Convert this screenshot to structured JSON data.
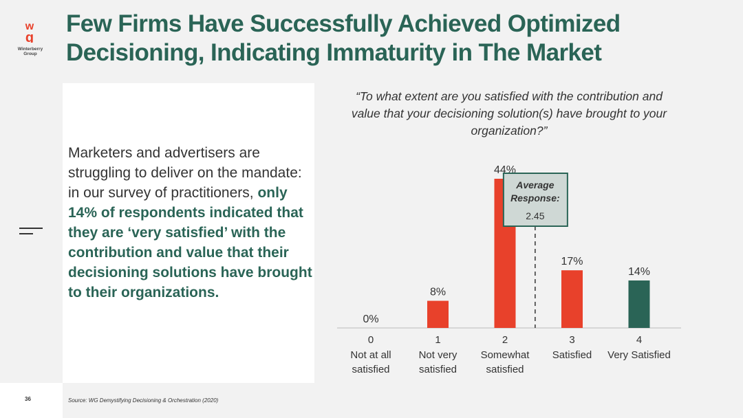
{
  "logo": {
    "brand_line1": "Winterberry",
    "brand_line2": "Group"
  },
  "title": {
    "line1": "Few Firms Have Successfully Achieved Optimized",
    "line2": "Decisioning, Indicating Immaturity in The Market"
  },
  "body": {
    "plain": "Marketers and advertisers are struggling to deliver on the mandate: in our survey of practitioners, ",
    "highlight": "only 14% of respondents indicated that they are ‘very satisfied’ with the contribution and value that their decisioning solutions have brought to their organizations."
  },
  "question": "“To what extent are you satisfied with the contribution and value that your decisioning solution(s) have brought to your organization?”",
  "colors": {
    "red": "#e8412b",
    "green": "#2a6456",
    "avg_box": "#cfd8d5"
  },
  "chart_data": {
    "type": "bar",
    "categories": [
      "0",
      "1",
      "2",
      "3",
      "4"
    ],
    "category_labels": [
      [
        "Not at all",
        "satisfied"
      ],
      [
        "Not very",
        "satisfied"
      ],
      [
        "Somewhat",
        "satisfied"
      ],
      [
        "Satisfied"
      ],
      [
        "Very Satisfied"
      ]
    ],
    "values": [
      0,
      8,
      44,
      17,
      14
    ],
    "value_labels": [
      "0%",
      "8%",
      "44%",
      "17%",
      "14%"
    ],
    "highlight_index": 4,
    "ylim": [
      0,
      44
    ],
    "average": {
      "label_line1": "Average",
      "label_line2": "Response:",
      "value": 2.45,
      "value_text": "2.45"
    },
    "title": "",
    "xlabel": "",
    "ylabel": ""
  },
  "footer": {
    "page": "36",
    "source": "Source: WG Demystifying Decisioning & Orchestration (2020)"
  }
}
